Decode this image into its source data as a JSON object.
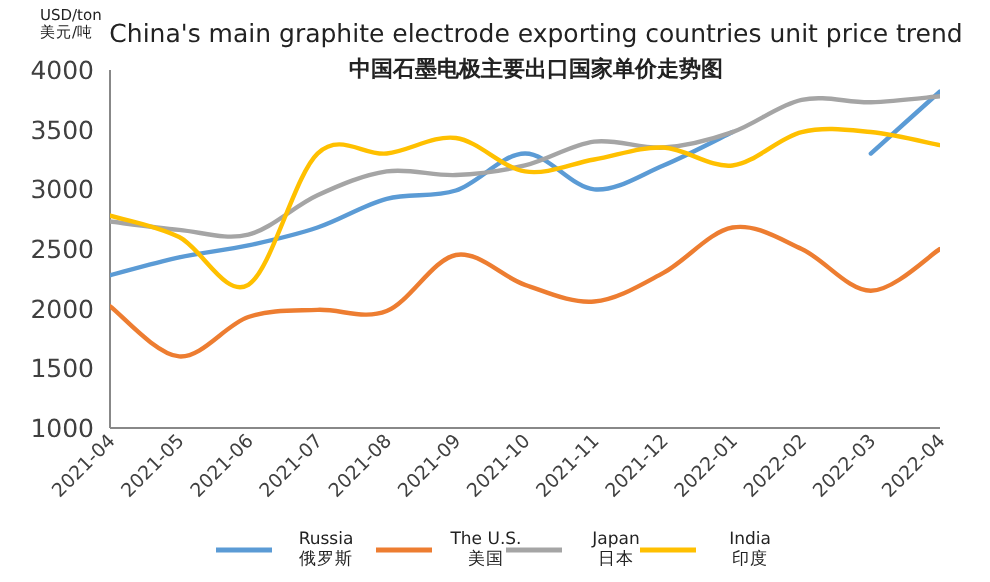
{
  "chart_data": {
    "type": "line",
    "title": "China's main graphite electrode exporting countries unit price trend",
    "subtitle": "中国石墨电极主要出口国家单价走势图",
    "ylabel": "USD/ton\n美元/吨",
    "categories": [
      "2021-04",
      "2021-05",
      "2021-06",
      "2021-07",
      "2021-08",
      "2021-09",
      "2021-10",
      "2021-11",
      "2021-12",
      "2022-01",
      "2022-02",
      "2022-03",
      "2022-04"
    ],
    "series": [
      {
        "name": "Russia\n俄罗斯",
        "color": "#5b9bd5",
        "values": [
          2280,
          2430,
          2530,
          2680,
          2920,
          2990,
          3300,
          3000,
          3200,
          3480,
          null,
          3300,
          3820
        ]
      },
      {
        "name": "The U.S.\n美国",
        "color": "#ed7d31",
        "values": [
          2020,
          1600,
          1930,
          1990,
          1980,
          2450,
          2200,
          2060,
          2300,
          2680,
          2500,
          2150,
          2500
        ]
      },
      {
        "name": "Japan\n日本",
        "color": "#a5a5a5",
        "values": [
          2730,
          2660,
          2620,
          2950,
          3150,
          3120,
          3200,
          3400,
          3350,
          3480,
          3750,
          3730,
          3780
        ]
      },
      {
        "name": "India\n印度",
        "color": "#ffc000",
        "values": [
          2780,
          2600,
          2200,
          3300,
          3300,
          3430,
          3150,
          3250,
          3350,
          3200,
          3480,
          3480,
          3370
        ]
      }
    ],
    "ylim": [
      1000,
      4000
    ],
    "yticks": [
      1000,
      1500,
      2000,
      2500,
      3000,
      3500,
      4000
    ],
    "grid": false,
    "legend": "bottom",
    "marker": "none",
    "line_style": "solid"
  }
}
